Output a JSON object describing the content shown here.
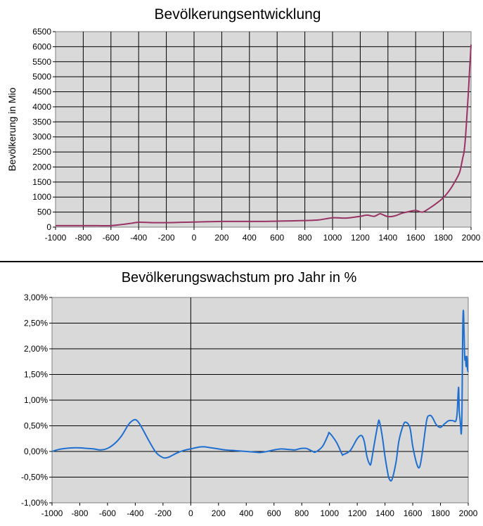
{
  "chart_data": [
    {
      "type": "line",
      "title": "Bevölkerungsentwicklung",
      "xlabel": "",
      "ylabel": "Bevölkerung in Mio",
      "xlim": [
        -1000,
        2000
      ],
      "ylim": [
        0,
        6500
      ],
      "grid": true,
      "plot_background": "#d9d9d9",
      "series": [
        {
          "color": "#993366",
          "x": [
            -1000,
            -900,
            -800,
            -700,
            -600,
            -500,
            -450,
            -400,
            -300,
            -200,
            -100,
            0,
            100,
            200,
            300,
            400,
            500,
            600,
            700,
            800,
            900,
            1000,
            1100,
            1200,
            1250,
            1300,
            1340,
            1360,
            1400,
            1450,
            1500,
            1550,
            1600,
            1650,
            1700,
            1750,
            1800,
            1850,
            1900,
            1920,
            1940,
            1950,
            1960,
            1970,
            1980,
            1990,
            2000
          ],
          "values": [
            50,
            50,
            50,
            50,
            50,
            100,
            130,
            162,
            150,
            150,
            160,
            170,
            180,
            190,
            190,
            190,
            190,
            200,
            207,
            220,
            240,
            310,
            301,
            360,
            400,
            360,
            443,
            420,
            350,
            374,
            461,
            515,
            554,
            500,
            630,
            790,
            980,
            1260,
            1650,
            1860,
            2300,
            2520,
            3000,
            3700,
            4430,
            5260,
            6070
          ]
        }
      ],
      "yticks": [
        "0",
        "500",
        "1000",
        "1500",
        "2000",
        "2500",
        "3000",
        "3500",
        "4000",
        "4500",
        "5000",
        "5500",
        "6000",
        "6500"
      ],
      "xticks": [
        "-1000",
        "-800",
        "-600",
        "-400",
        "-200",
        "0",
        "200",
        "400",
        "600",
        "800",
        "1000",
        "1200",
        "1400",
        "1600",
        "1800",
        "2000"
      ]
    },
    {
      "type": "line",
      "title": "Bevölkerungswachstum pro Jahr in %",
      "xlabel": "",
      "ylabel": "",
      "xlim": [
        -1000,
        2000
      ],
      "ylim": [
        -1.0,
        3.0
      ],
      "grid": "horizontal",
      "plot_background": "#d9d9d9",
      "series": [
        {
          "color": "#1f6fd1",
          "x": [
            -1000,
            -950,
            -900,
            -850,
            -800,
            -750,
            -700,
            -650,
            -600,
            -550,
            -500,
            -450,
            -420,
            -400,
            -380,
            -350,
            -300,
            -250,
            -200,
            -170,
            -150,
            -100,
            -50,
            0,
            50,
            80,
            100,
            150,
            200,
            250,
            300,
            350,
            400,
            450,
            500,
            550,
            600,
            650,
            700,
            750,
            780,
            800,
            830,
            850,
            880,
            900,
            950,
            990,
            1000,
            1050,
            1090,
            1100,
            1150,
            1200,
            1230,
            1250,
            1270,
            1290,
            1300,
            1320,
            1350,
            1360,
            1380,
            1400,
            1420,
            1430,
            1450,
            1480,
            1500,
            1530,
            1550,
            1580,
            1600,
            1630,
            1650,
            1670,
            1700,
            1720,
            1740,
            1770,
            1800,
            1830,
            1860,
            1890,
            1910,
            1920,
            1930,
            1935,
            1940,
            1945,
            1950,
            1955,
            1960,
            1965,
            1970,
            1975,
            1980,
            1985,
            1990,
            1995,
            2000
          ],
          "values": [
            0.0,
            0.04,
            0.06,
            0.07,
            0.07,
            0.06,
            0.05,
            0.03,
            0.06,
            0.15,
            0.3,
            0.52,
            0.6,
            0.62,
            0.58,
            0.45,
            0.2,
            -0.02,
            -0.12,
            -0.12,
            -0.1,
            -0.03,
            0.02,
            0.05,
            0.08,
            0.09,
            0.09,
            0.07,
            0.05,
            0.03,
            0.02,
            0.01,
            0.0,
            -0.01,
            -0.02,
            0.0,
            0.03,
            0.05,
            0.04,
            0.03,
            0.05,
            0.06,
            0.06,
            0.04,
            0.0,
            -0.01,
            0.1,
            0.32,
            0.36,
            0.18,
            -0.05,
            -0.06,
            0.02,
            0.25,
            0.31,
            0.2,
            -0.1,
            -0.25,
            -0.22,
            0.1,
            0.55,
            0.58,
            0.3,
            -0.1,
            -0.42,
            -0.53,
            -0.55,
            -0.2,
            0.2,
            0.5,
            0.57,
            0.46,
            0.1,
            -0.25,
            -0.3,
            0.0,
            0.6,
            0.7,
            0.67,
            0.52,
            0.47,
            0.54,
            0.6,
            0.6,
            0.59,
            0.75,
            1.25,
            0.8,
            0.65,
            0.5,
            0.35,
            0.8,
            2.3,
            2.75,
            2.3,
            1.8,
            1.85,
            1.65,
            1.85,
            1.6,
            1.55
          ]
        }
      ],
      "yticks": [
        "-1,00%",
        "-0,50%",
        "0,00%",
        "0,50%",
        "1,00%",
        "1,50%",
        "2,00%",
        "2,50%",
        "3,00%"
      ],
      "xticks": [
        "-1000",
        "-800",
        "-600",
        "-400",
        "-200",
        "0",
        "200",
        "400",
        "600",
        "800",
        "1000",
        "1200",
        "1400",
        "1600",
        "1800",
        "2000"
      ]
    }
  ]
}
